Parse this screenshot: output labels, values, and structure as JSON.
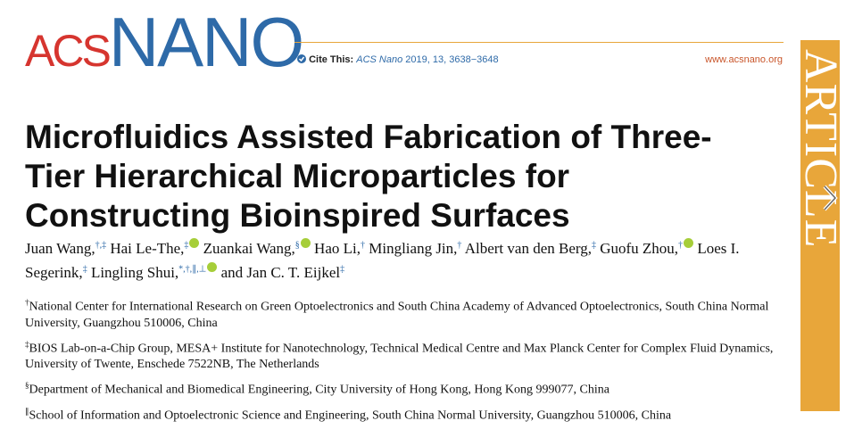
{
  "header": {
    "logo_acs": "ACS",
    "logo_nano": "NANO",
    "cite_label": "Cite This:",
    "cite_journal": "ACS Nano",
    "cite_details": "2019, 13, 3638−3648",
    "url": "www.acsnano.org"
  },
  "side_tab": "ARTICLE",
  "title_lines": [
    "Microfluidics Assisted Fabrication of Three-",
    "Tier Hierarchical Microparticles for",
    "Constructing Bioinspired Surfaces"
  ],
  "authors": [
    {
      "name": "Juan Wang,",
      "marks": "†,‡",
      "orcid": false
    },
    {
      "name": "Hai Le-The,",
      "marks": "‡",
      "orcid": true
    },
    {
      "name": "Zuankai Wang,",
      "marks": "§",
      "orcid": true
    },
    {
      "name": "Hao Li,",
      "marks": "†",
      "orcid": false
    },
    {
      "name": "Mingliang Jin,",
      "marks": "†",
      "orcid": false
    },
    {
      "name": "Albert van den Berg,",
      "marks": "‡",
      "orcid": false
    },
    {
      "name": "Guofu Zhou,",
      "marks": "†",
      "orcid": true
    },
    {
      "name": "Loes I. Segerink,",
      "marks": "‡",
      "orcid": false
    },
    {
      "name": "Lingling Shui,",
      "marks": "*,†,∥,⊥",
      "orcid": true
    },
    {
      "name": "and Jan C. T. Eijkel",
      "marks": "‡",
      "orcid": false
    }
  ],
  "affiliations": [
    {
      "mark": "†",
      "text": "National Center for International Research on Green Optoelectronics and South China Academy of Advanced Optoelectronics, South China Normal University, Guangzhou 510006, China"
    },
    {
      "mark": "‡",
      "text": "BIOS Lab-on-a-Chip Group, MESA+ Institute for Nanotechnology, Technical Medical Centre and Max Planck Center for Complex Fluid Dynamics, University of Twente, Enschede 7522NB, The Netherlands"
    },
    {
      "mark": "§",
      "text": "Department of Mechanical and Biomedical Engineering, City University of Hong Kong, Hong Kong 999077, China"
    },
    {
      "mark": "∥",
      "text": "School of Information and Optoelectronic Science and Engineering, South China Normal University, Guangzhou 510006, China"
    }
  ]
}
